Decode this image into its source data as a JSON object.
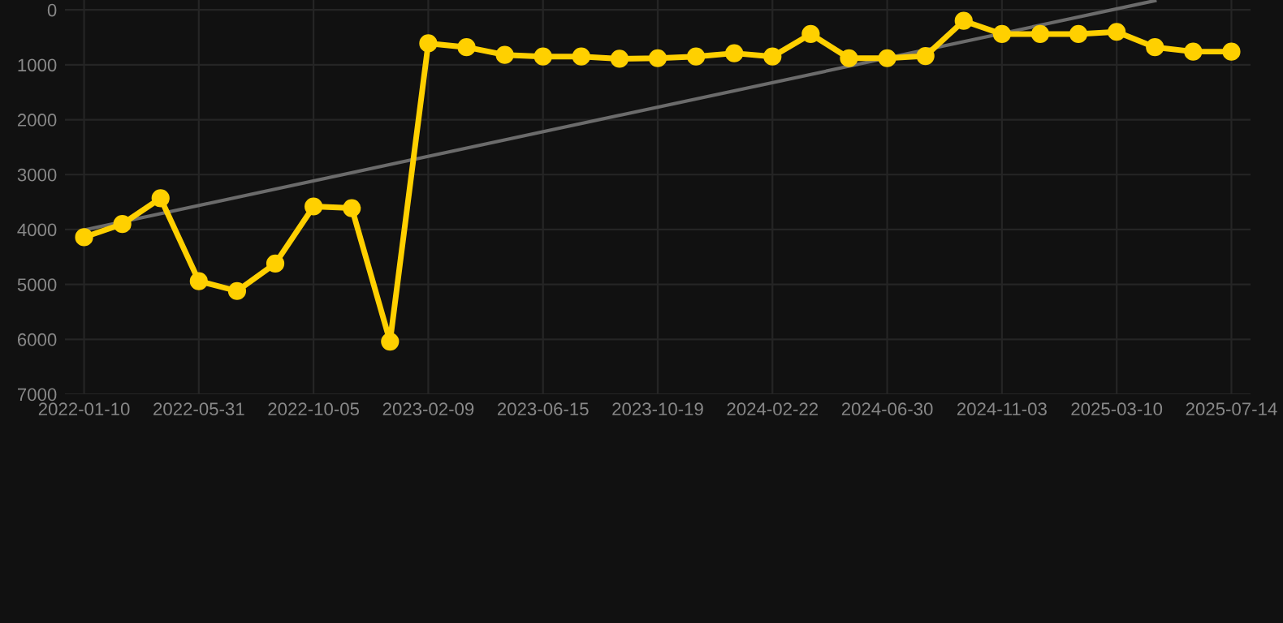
{
  "chart_data": {
    "type": "line",
    "categories": [
      "2022-01-10",
      null,
      null,
      "2022-05-31",
      null,
      null,
      "2022-10-05",
      null,
      null,
      "2023-02-09",
      null,
      null,
      "2023-06-15",
      null,
      null,
      "2023-10-19",
      null,
      null,
      "2024-02-22",
      null,
      null,
      "2024-06-30",
      null,
      null,
      "2024-11-03",
      null,
      null,
      "2025-03-10",
      null,
      null,
      "2025-07-14"
    ],
    "series": [
      {
        "color": "#ffd000",
        "marker": "circle",
        "values": [
          4140,
          3900,
          3430,
          4940,
          5120,
          4620,
          3580,
          3610,
          6040,
          610,
          680,
          820,
          850,
          850,
          890,
          880,
          850,
          790,
          850,
          440,
          880,
          880,
          840,
          200,
          440,
          440,
          440,
          400,
          680,
          760,
          760
        ]
      },
      {
        "type": "line",
        "color": "#6b6b6b",
        "marker": "none",
        "values": [
          4010,
          null,
          null,
          null,
          null,
          null,
          null,
          null,
          null,
          null,
          null,
          null,
          null,
          null,
          null,
          null,
          null,
          null,
          null,
          null,
          null,
          null,
          null,
          null,
          null,
          null,
          null,
          null,
          -168,
          null,
          null
        ]
      }
    ],
    "ylim": [
      7000,
      -180
    ],
    "yticks": [
      0,
      1000,
      2000,
      3000,
      4000,
      5000,
      6000,
      7000
    ],
    "grid": true
  }
}
